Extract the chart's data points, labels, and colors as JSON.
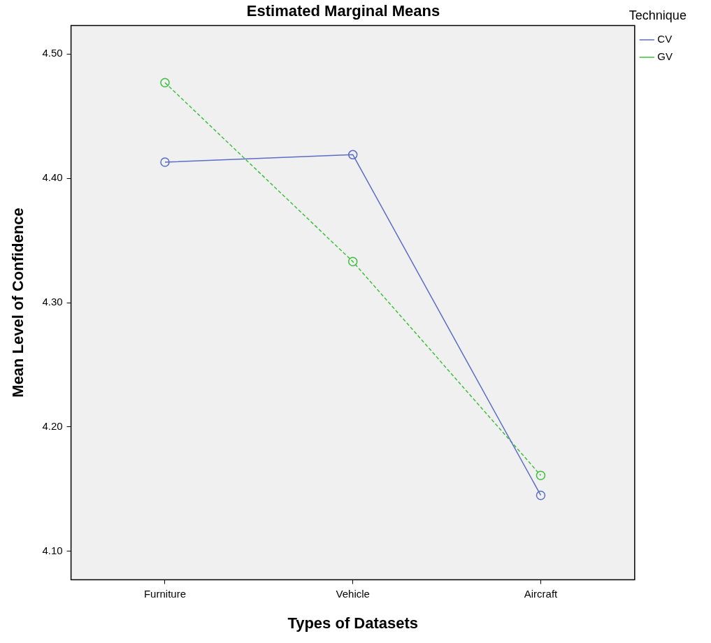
{
  "chart_data": {
    "type": "line",
    "title": "Estimated Marginal Means",
    "xlabel": "Types of Datasets",
    "ylabel": "Mean Level of Confidence",
    "legend_title": "Technique",
    "categories": [
      "Furniture",
      "Vehicle",
      "Aircraft"
    ],
    "series": [
      {
        "name": "CV",
        "color": "#5b6ec4",
        "values": [
          4.413,
          4.419,
          4.145
        ],
        "line_style": "solid"
      },
      {
        "name": "GV",
        "color": "#3fbf3f",
        "values": [
          4.477,
          4.333,
          4.161
        ],
        "line_style": "dashed"
      }
    ],
    "ylim": [
      4.077,
      4.523
    ],
    "yticks": [
      {
        "value": 4.1,
        "label": "4.10"
      },
      {
        "value": 4.2,
        "label": "4.20"
      },
      {
        "value": 4.3,
        "label": "4.30"
      },
      {
        "value": 4.4,
        "label": "4.40"
      },
      {
        "value": 4.5,
        "label": "4.50"
      }
    ],
    "grid": false,
    "legend": "top right",
    "marker": "circle"
  }
}
